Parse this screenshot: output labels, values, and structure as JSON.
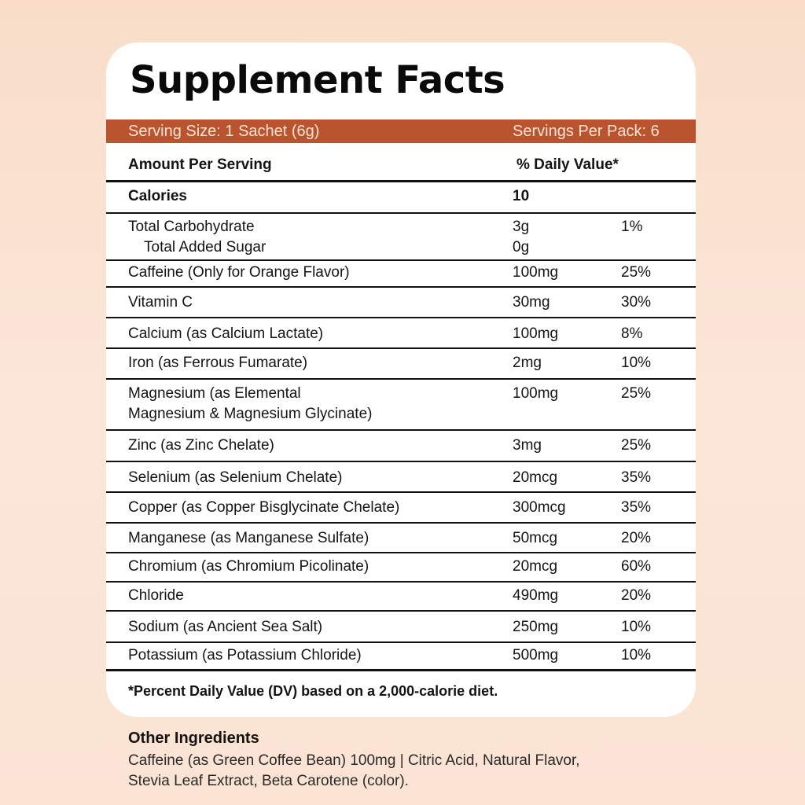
{
  "title": "Supplement Facts",
  "serving": {
    "size": "Serving Size: 1 Sachet (6g)",
    "per_pack": "Servings Per Pack: 6"
  },
  "header": {
    "amount": "Amount Per Serving",
    "daily_value": "% Daily Value*"
  },
  "calories": {
    "label": "Calories",
    "value": "10"
  },
  "carbs": {
    "label": "Total Carbohydrate",
    "amount": "3g",
    "dv": "1%",
    "sub_label": "Total Added Sugar",
    "sub_amount": "0g"
  },
  "rows": [
    {
      "label": "Caffeine (Only for Orange Flavor)",
      "amount": "100mg",
      "dv": "25%"
    },
    {
      "label": "Vitamin C",
      "amount": "30mg",
      "dv": "30%"
    },
    {
      "label": "Calcium (as Calcium Lactate)",
      "amount": "100mg",
      "dv": "8%"
    },
    {
      "label": "Iron (as Ferrous Fumarate)",
      "amount": "2mg",
      "dv": "10%"
    },
    {
      "label": "Magnesium (as Elemental",
      "label2": "Magnesium & Magnesium Glycinate)",
      "amount": "100mg",
      "dv": "25%"
    },
    {
      "label": "Zinc (as Zinc Chelate)",
      "amount": "3mg",
      "dv": "25%"
    },
    {
      "label": "Selenium (as Selenium Chelate)",
      "amount": "20mcg",
      "dv": "35%"
    },
    {
      "label": "Copper (as Copper Bisglycinate Chelate)",
      "amount": "300mcg",
      "dv": "35%"
    },
    {
      "label": "Manganese (as Manganese Sulfate)",
      "amount": "50mcg",
      "dv": "20%"
    },
    {
      "label": "Chromium (as Chromium Picolinate)",
      "amount": "20mcg",
      "dv": "60%"
    },
    {
      "label": "Chloride",
      "amount": "490mg",
      "dv": "20%"
    },
    {
      "label": "Sodium (as Ancient Sea Salt)",
      "amount": "250mg",
      "dv": "10%"
    },
    {
      "label": "Potassium (as Potassium Chloride)",
      "amount": "500mg",
      "dv": "10%"
    }
  ],
  "footnote": "*Percent Daily Value (DV) based on a 2,000-calorie diet.",
  "other_ingredients": {
    "heading": "Other Ingredients",
    "line1": "Caffeine (as Green Coffee Bean) 100mg | Citric Acid, Natural Flavor,",
    "line2": "Stevia Leaf Extract, Beta Carotene (color)."
  },
  "colors": {
    "accent": "#b9542f",
    "background": "#f9ddc9",
    "card": "#ffffff"
  }
}
